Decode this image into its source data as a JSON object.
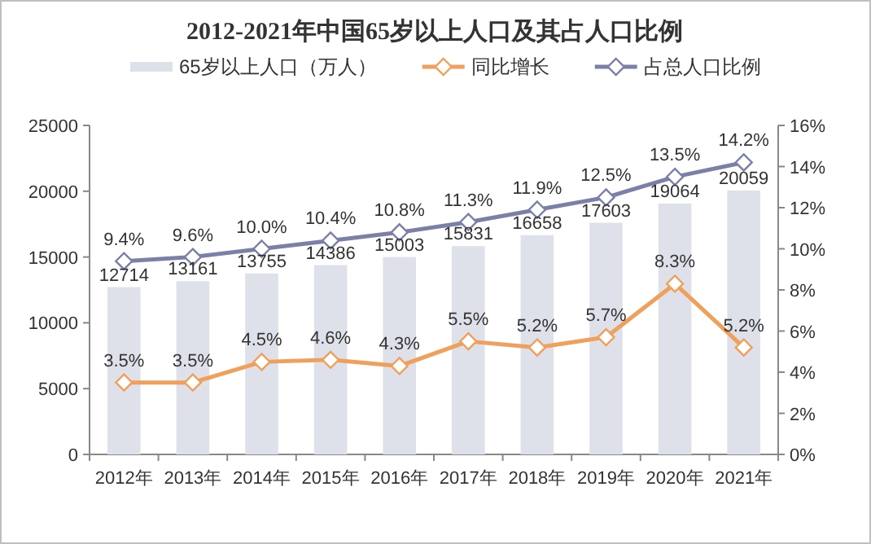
{
  "chart_data": {
    "type": "bar",
    "title": "2012-2021年中国65岁以上人口及其占人口比例",
    "categories": [
      "2012年",
      "2013年",
      "2014年",
      "2015年",
      "2016年",
      "2017年",
      "2018年",
      "2019年",
      "2020年",
      "2021年"
    ],
    "series": [
      {
        "name": "65岁以上人口（万人）",
        "color": "#dfe1ea",
        "values": [
          12714,
          13161,
          13755,
          14386,
          15003,
          15831,
          16658,
          17603,
          19064,
          20059
        ],
        "value_labels": [
          "12714",
          "13161",
          "13755",
          "14386",
          "15003",
          "15831",
          "16658",
          "17603",
          "19064",
          "20059"
        ]
      },
      {
        "name": "同比增长",
        "type": "line",
        "axis": "y2",
        "color": "#f0a05a",
        "values": [
          3.5,
          3.5,
          4.5,
          4.6,
          4.3,
          5.5,
          5.2,
          5.7,
          8.3,
          5.2
        ],
        "value_labels": [
          "3.5%",
          "3.5%",
          "4.5%",
          "4.6%",
          "4.3%",
          "5.5%",
          "5.2%",
          "5.7%",
          "8.3%",
          "5.2%"
        ]
      },
      {
        "name": "占总人口比例",
        "type": "line",
        "axis": "y2",
        "color": "#7b80a8",
        "values": [
          9.4,
          9.6,
          10.0,
          10.4,
          10.8,
          11.3,
          11.9,
          12.5,
          13.5,
          14.2
        ],
        "value_labels": [
          "9.4%",
          "9.6%",
          "10.0%",
          "10.4%",
          "10.8%",
          "11.3%",
          "11.9%",
          "12.5%",
          "13.5%",
          "14.2%"
        ]
      }
    ],
    "ylim": [
      0,
      25000
    ],
    "yticks": [
      0,
      5000,
      10000,
      15000,
      20000,
      25000
    ],
    "y2lim": [
      0,
      16
    ],
    "y2ticks": [
      {
        "value": 0,
        "label": "0%"
      },
      {
        "value": 2,
        "label": "2%"
      },
      {
        "value": 4,
        "label": "4%"
      },
      {
        "value": 6,
        "label": "6%"
      },
      {
        "value": 8,
        "label": "8%"
      },
      {
        "value": 10,
        "label": "10%"
      },
      {
        "value": 12,
        "label": "12%"
      },
      {
        "value": 14,
        "label": "14%"
      },
      {
        "value": 16,
        "label": "16%"
      }
    ],
    "legend": "top",
    "marker": "diamond",
    "grid": false
  }
}
